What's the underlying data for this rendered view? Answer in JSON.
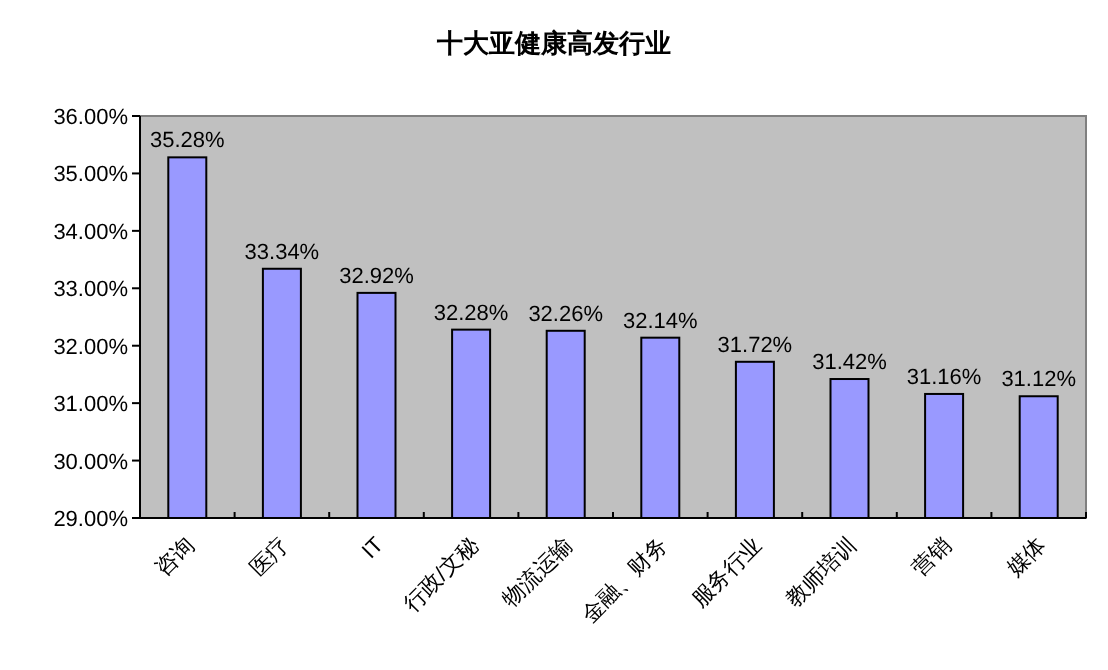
{
  "chart_data": {
    "type": "bar",
    "title": "十大亚健康高发行业",
    "categories": [
      "咨询",
      "医疗",
      "IT",
      "行政/文秘",
      "物流运输",
      "金融、财务",
      "服务行业",
      "教师培训",
      "营销",
      "媒体"
    ],
    "values": [
      35.28,
      33.34,
      32.92,
      32.28,
      32.26,
      32.14,
      31.72,
      31.42,
      31.16,
      31.12
    ],
    "value_labels": [
      "35.28%",
      "33.34%",
      "32.92%",
      "32.28%",
      "32.26%",
      "32.14%",
      "31.72%",
      "31.42%",
      "31.16%",
      "31.12%"
    ],
    "color": "#9999ff",
    "ylim": [
      29,
      36
    ],
    "yticks": [
      {
        "value": 29,
        "label": "29.00%"
      },
      {
        "value": 30,
        "label": "30.00%"
      },
      {
        "value": 31,
        "label": "31.00%"
      },
      {
        "value": 32,
        "label": "32.00%"
      },
      {
        "value": 33,
        "label": "33.00%"
      },
      {
        "value": 34,
        "label": "34.00%"
      },
      {
        "value": 35,
        "label": "35.00%"
      },
      {
        "value": 36,
        "label": "36.00%"
      }
    ],
    "grid": false
  }
}
